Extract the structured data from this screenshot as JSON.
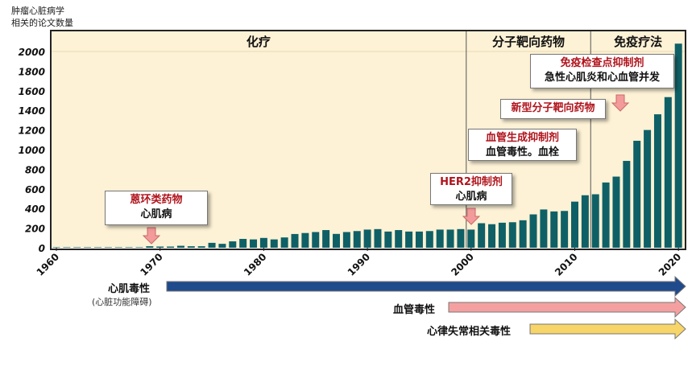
{
  "chart_data": {
    "type": "bar",
    "ylabel": "肿瘤心脏病学\n相关的论文数量",
    "ylabel_lines": [
      "肿瘤心脏病学",
      "相关的论文数量"
    ],
    "ylim": [
      0,
      2200
    ],
    "yticks": [
      0,
      200,
      400,
      600,
      800,
      1000,
      1200,
      1400,
      1600,
      1800,
      2000
    ],
    "xticks": [
      1960,
      1970,
      1980,
      1990,
      2000,
      2010,
      2020
    ],
    "x": [
      1960,
      1961,
      1962,
      1963,
      1964,
      1965,
      1966,
      1967,
      1968,
      1969,
      1970,
      1971,
      1972,
      1973,
      1974,
      1975,
      1976,
      1977,
      1978,
      1979,
      1980,
      1981,
      1982,
      1983,
      1984,
      1985,
      1986,
      1987,
      1988,
      1989,
      1990,
      1991,
      1992,
      1993,
      1994,
      1995,
      1996,
      1997,
      1998,
      1999,
      2000,
      2001,
      2002,
      2003,
      2004,
      2005,
      2006,
      2007,
      2008,
      2009,
      2010,
      2011,
      2012,
      2013,
      2014,
      2015,
      2016,
      2017,
      2018,
      2019,
      2020
    ],
    "values": [
      5,
      5,
      5,
      5,
      5,
      5,
      5,
      5,
      5,
      15,
      12,
      12,
      20,
      15,
      15,
      50,
      40,
      65,
      90,
      85,
      100,
      85,
      105,
      140,
      150,
      160,
      180,
      141,
      160,
      170,
      185,
      190,
      165,
      180,
      165,
      165,
      170,
      185,
      185,
      190,
      185,
      250,
      240,
      255,
      260,
      280,
      340,
      390,
      370,
      375,
      470,
      535,
      545,
      665,
      725,
      885,
      1090,
      1200,
      1360,
      1535,
      2080
    ],
    "bar_color": "#0f6066",
    "background_color": "#fdf2d6",
    "grid": false,
    "eras": [
      {
        "label": "化疗",
        "from": 1960,
        "to": 2000
      },
      {
        "label": "分子靶向药物",
        "from": 2000,
        "to": 2012
      },
      {
        "label": "免疫疗法",
        "from": 2012,
        "to": 2020
      }
    ]
  },
  "callouts": [
    {
      "title": "蒽环类药物",
      "text": "心肌病"
    },
    {
      "title": "HER2抑制剂",
      "text": "心肌病"
    },
    {
      "title": "血管生成抑制剂",
      "text": "血管毒性。血栓"
    },
    {
      "title": "新型分子靶向药物",
      "text": ""
    },
    {
      "title": "免疫检查点抑制剂",
      "text": "急性心肌炎和心血管并发"
    }
  ],
  "toxicities": [
    {
      "label": "心肌毒性",
      "sub": "(心脏功能障碍)",
      "color": "#1f4a8c"
    },
    {
      "label": "血管毒性",
      "color": "#f5a0a0"
    },
    {
      "label": "心律失常相关毒性",
      "color": "#f8d568"
    }
  ]
}
